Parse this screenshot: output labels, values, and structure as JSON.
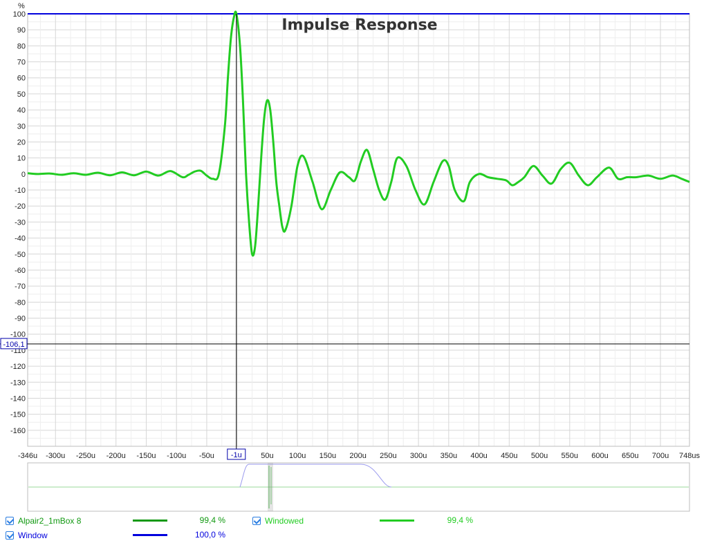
{
  "chart_data": {
    "type": "line",
    "title": "Impulse Response",
    "ylabel": "%",
    "xunit": "us",
    "xlim": [
      -346,
      748
    ],
    "ylim": [
      -170,
      100
    ],
    "grid": true,
    "x_ticks": [
      {
        "v": -346,
        "label": "-346u"
      },
      {
        "v": -300,
        "label": "-300u"
      },
      {
        "v": -250,
        "label": "-250u"
      },
      {
        "v": -200,
        "label": "-200u"
      },
      {
        "v": -150,
        "label": "-150u"
      },
      {
        "v": -100,
        "label": "-100u"
      },
      {
        "v": -50,
        "label": "-50u"
      },
      {
        "v": 50,
        "label": "50u"
      },
      {
        "v": 100,
        "label": "100u"
      },
      {
        "v": 150,
        "label": "150u"
      },
      {
        "v": 200,
        "label": "200u"
      },
      {
        "v": 250,
        "label": "250u"
      },
      {
        "v": 300,
        "label": "300u"
      },
      {
        "v": 350,
        "label": "350u"
      },
      {
        "v": 400,
        "label": "400u"
      },
      {
        "v": 450,
        "label": "450u"
      },
      {
        "v": 500,
        "label": "500u"
      },
      {
        "v": 550,
        "label": "550u"
      },
      {
        "v": 600,
        "label": "600u"
      },
      {
        "v": 650,
        "label": "650u"
      },
      {
        "v": 700,
        "label": "700u"
      },
      {
        "v": 748,
        "label": "748us"
      }
    ],
    "y_ticks": [
      100,
      90,
      80,
      70,
      60,
      50,
      40,
      30,
      20,
      10,
      0,
      -10,
      -20,
      -30,
      -40,
      -50,
      -60,
      -70,
      -80,
      -90,
      -100,
      -110,
      -120,
      -130,
      -140,
      -150,
      -160
    ],
    "cursor": {
      "x_label": "-1u",
      "y_label": "-106,1",
      "x": -1,
      "y": -106.1
    },
    "series": [
      {
        "name": "Windowed",
        "color": "#22cc22",
        "x": [
          -346,
          -330,
          -310,
          -290,
          -270,
          -250,
          -230,
          -210,
          -190,
          -170,
          -150,
          -130,
          -110,
          -90,
          -80,
          -70,
          -60,
          -50,
          -40,
          -30,
          -20,
          -15,
          -10,
          -5,
          -1,
          5,
          10,
          15,
          20,
          25,
          30,
          35,
          40,
          45,
          50,
          55,
          60,
          65,
          70,
          75,
          80,
          90,
          100,
          110,
          125,
          140,
          155,
          170,
          185,
          195,
          205,
          215,
          225,
          235,
          245,
          255,
          265,
          280,
          295,
          310,
          325,
          340,
          350,
          360,
          375,
          385,
          400,
          415,
          430,
          445,
          455,
          465,
          475,
          490,
          505,
          520,
          535,
          550,
          565,
          580,
          595,
          615,
          630,
          645,
          660,
          680,
          700,
          720,
          735,
          748
        ],
        "y": [
          0.5,
          0,
          0.3,
          -0.5,
          0.5,
          -0.5,
          0.8,
          -0.8,
          1,
          -0.8,
          1.5,
          -1,
          1.8,
          -2,
          -0.5,
          1.5,
          2,
          -1,
          -3,
          0,
          30,
          60,
          85,
          98,
          100,
          80,
          45,
          0,
          -30,
          -50,
          -45,
          -20,
          10,
          35,
          46,
          40,
          20,
          -5,
          -20,
          -33,
          -35,
          -20,
          5,
          11,
          -5,
          -22,
          -10,
          1,
          -2,
          -4,
          8,
          15,
          3,
          -10,
          -16,
          -5,
          10,
          5,
          -10,
          -19,
          -5,
          8,
          5,
          -10,
          -17,
          -5,
          0,
          -2,
          -3,
          -4,
          -7,
          -5,
          -2,
          5,
          -1,
          -6,
          3,
          7,
          -1,
          -7,
          -2,
          4,
          -3,
          -2,
          -2,
          -1,
          -3,
          -1,
          -3,
          -5
        ]
      }
    ],
    "window_line": {
      "name": "Window",
      "color": "#0000dd",
      "y": 100
    }
  },
  "legend": [
    {
      "label": "Alpair2_1mBox 8",
      "color": "#119911",
      "value": "99,4 %"
    },
    {
      "label": "Windowed",
      "color": "#22cc22",
      "value": "99,4 %"
    },
    {
      "label": "Window",
      "color": "#0000dd",
      "value": "100,0 %"
    }
  ]
}
